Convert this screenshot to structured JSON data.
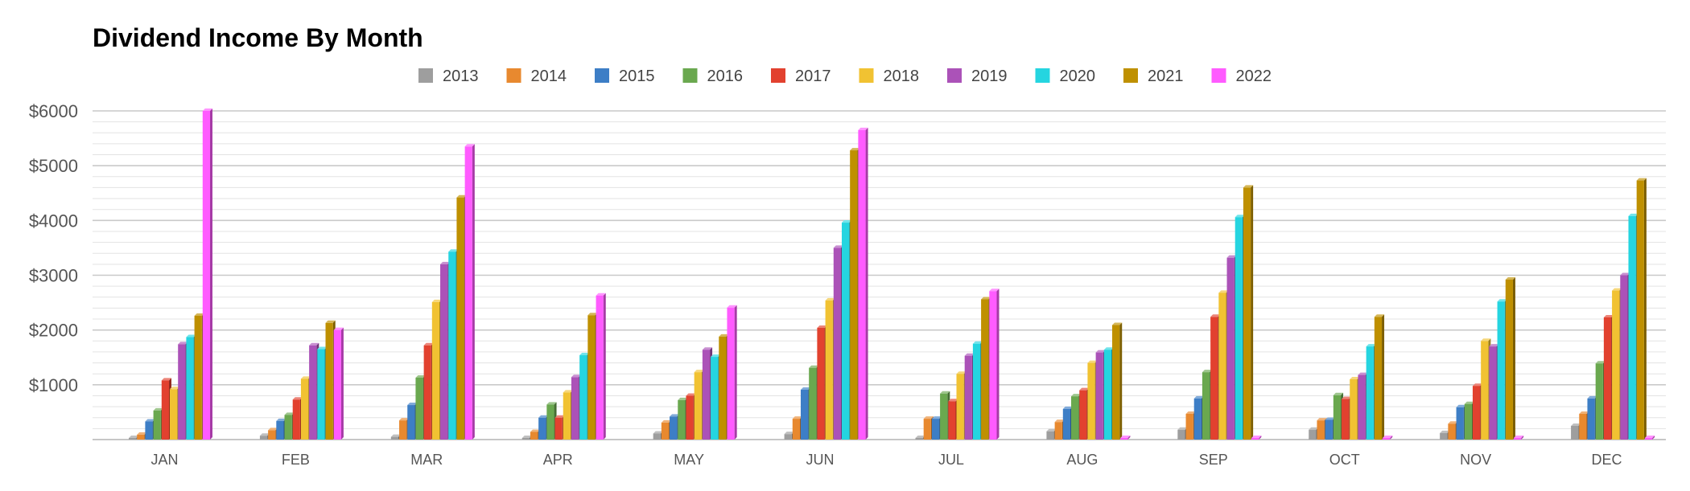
{
  "chart_data": {
    "type": "bar",
    "title": "Dividend Income By Month",
    "categories": [
      "JAN",
      "FEB",
      "MAR",
      "APR",
      "MAY",
      "JUN",
      "JUL",
      "AUG",
      "SEP",
      "OCT",
      "NOV",
      "DEC"
    ],
    "y_ticks": [
      "$1000",
      "$2000",
      "$3000",
      "$4000",
      "$5000",
      "$6000"
    ],
    "ylim": [
      0,
      6000
    ],
    "grid": true,
    "legend_position": "top",
    "series": [
      {
        "name": "2013",
        "color": "#9e9e9e",
        "values": [
          20,
          70,
          50,
          10,
          110,
          100,
          30,
          150,
          180,
          180,
          120,
          250
        ]
      },
      {
        "name": "2014",
        "color": "#e8892f",
        "values": [
          90,
          170,
          350,
          140,
          310,
          380,
          380,
          320,
          470,
          350,
          290,
          470
        ]
      },
      {
        "name": "2015",
        "color": "#3d7ec6",
        "values": [
          330,
          340,
          630,
          400,
          420,
          910,
          380,
          560,
          750,
          360,
          590,
          750
        ]
      },
      {
        "name": "2016",
        "color": "#6aa84f",
        "values": [
          530,
          450,
          1130,
          640,
          720,
          1310,
          840,
          790,
          1230,
          810,
          650,
          1390
        ]
      },
      {
        "name": "2017",
        "color": "#e2412f",
        "values": [
          1080,
          730,
          1720,
          400,
          800,
          2040,
          700,
          900,
          2240,
          740,
          980,
          2230
        ]
      },
      {
        "name": "2018",
        "color": "#f1c232",
        "values": [
          920,
          1110,
          2510,
          860,
          1230,
          2540,
          1200,
          1400,
          2680,
          1100,
          1800,
          2720
        ]
      },
      {
        "name": "2019",
        "color": "#ab52b8",
        "values": [
          1740,
          1720,
          3200,
          1140,
          1640,
          3500,
          1530,
          1590,
          3320,
          1180,
          1700,
          3000
        ]
      },
      {
        "name": "2020",
        "color": "#25d5e0",
        "values": [
          1870,
          1650,
          3430,
          1540,
          1510,
          3960,
          1750,
          1640,
          4060,
          1700,
          2520,
          4080
        ]
      },
      {
        "name": "2021",
        "color": "#bf9000",
        "values": [
          2260,
          2130,
          4420,
          2270,
          1880,
          5280,
          2560,
          2090,
          4600,
          2240,
          2920,
          4730
        ]
      },
      {
        "name": "2022",
        "color": "#ff5bff",
        "values": [
          6000,
          2000,
          5350,
          2630,
          2410,
          5650,
          2710,
          0,
          0,
          0,
          0,
          0
        ]
      }
    ]
  }
}
